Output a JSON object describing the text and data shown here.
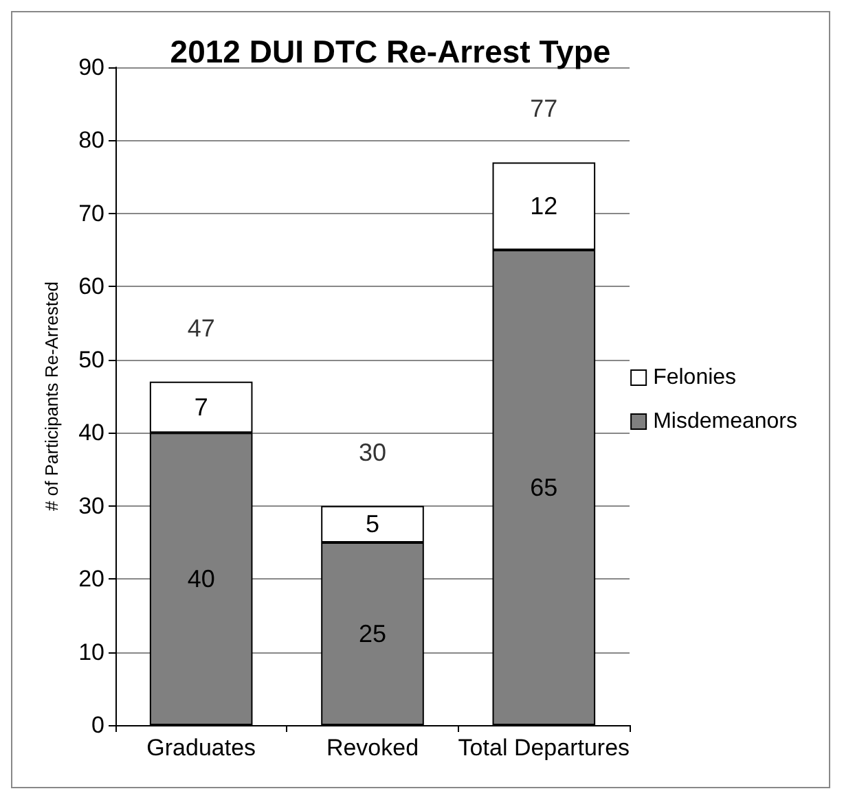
{
  "chart_data": {
    "type": "bar",
    "title": "2012 DUI DTC Re-Arrest Type",
    "ylabel": "# of Participants Re-Arrested",
    "categories": [
      "Graduates",
      "Revoked",
      "Total Departures"
    ],
    "stacked": true,
    "series": [
      {
        "name": "Misdemeanors",
        "color": "#808080",
        "values": [
          40,
          25,
          65
        ]
      },
      {
        "name": "Felonies",
        "color": "#ffffff",
        "values": [
          7,
          5,
          12
        ]
      }
    ],
    "totals": [
      "47",
      "30",
      "77"
    ],
    "data_labels": true,
    "ylim": [
      0,
      90
    ],
    "yticks": [
      0,
      10,
      20,
      30,
      40,
      50,
      60,
      70,
      80,
      90
    ],
    "grid": "y",
    "legend": "right"
  }
}
